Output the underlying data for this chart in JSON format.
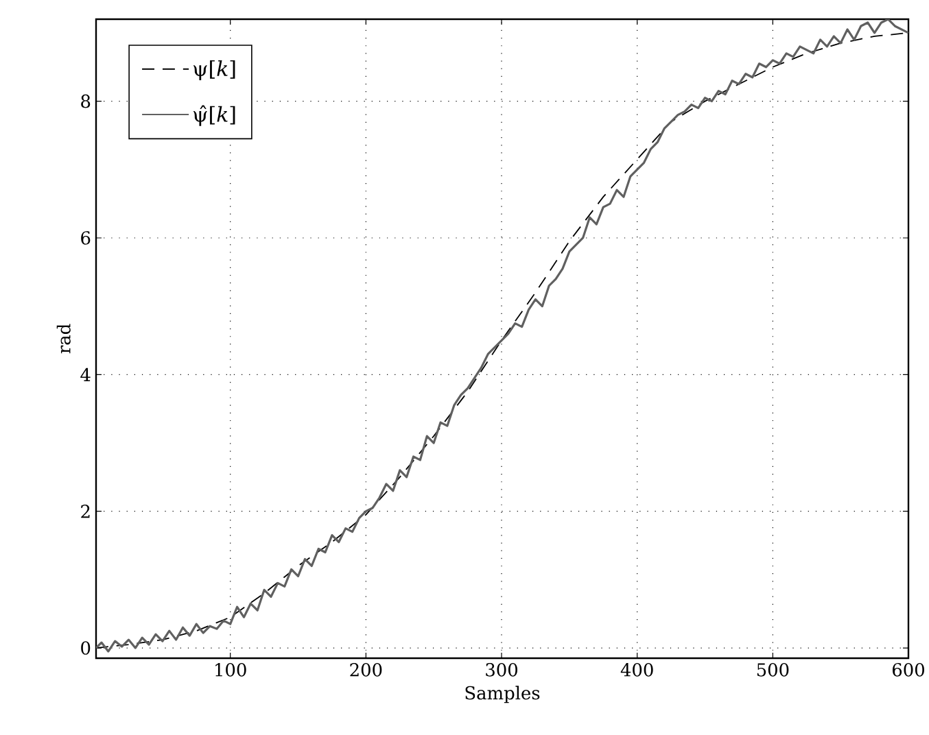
{
  "chart_data": {
    "type": "line",
    "xlabel": "Samples",
    "ylabel": "rad",
    "xlim": [
      1,
      600
    ],
    "ylim": [
      -0.15,
      9.2
    ],
    "xticks": [
      100,
      200,
      300,
      400,
      500,
      600
    ],
    "yticks": [
      0,
      2,
      4,
      6,
      8
    ],
    "grid": true,
    "legend": "top left",
    "marker": "none",
    "series": [
      {
        "name": "ψ[*k*]",
        "color": "#000000",
        "line_style": "dashed",
        "x": [
          1,
          25,
          50,
          75,
          100,
          125,
          150,
          175,
          200,
          225,
          250,
          275,
          300,
          325,
          350,
          375,
          400,
          425,
          450,
          475,
          500,
          525,
          550,
          575,
          600
        ],
        "values": [
          0,
          0.05,
          0.12,
          0.25,
          0.45,
          0.8,
          1.2,
          1.55,
          1.95,
          2.5,
          3.1,
          3.75,
          4.5,
          5.2,
          5.95,
          6.6,
          7.15,
          7.7,
          8.0,
          8.25,
          8.5,
          8.7,
          8.85,
          8.95,
          9.0
        ]
      },
      {
        "name": "ψ̂[*k*]",
        "color": "#606060",
        "line_style": "solid",
        "x": [
          1,
          5,
          10,
          15,
          20,
          25,
          30,
          35,
          40,
          45,
          50,
          55,
          60,
          65,
          70,
          75,
          80,
          85,
          90,
          95,
          100,
          105,
          110,
          115,
          120,
          125,
          130,
          135,
          140,
          145,
          150,
          155,
          160,
          165,
          170,
          175,
          180,
          185,
          190,
          195,
          200,
          205,
          210,
          215,
          220,
          225,
          230,
          235,
          240,
          245,
          250,
          255,
          260,
          265,
          270,
          275,
          280,
          285,
          290,
          295,
          300,
          305,
          310,
          315,
          320,
          325,
          330,
          335,
          340,
          345,
          350,
          355,
          360,
          365,
          370,
          375,
          380,
          385,
          390,
          395,
          400,
          405,
          410,
          415,
          420,
          425,
          430,
          435,
          440,
          445,
          450,
          455,
          460,
          465,
          470,
          475,
          480,
          485,
          490,
          495,
          500,
          505,
          510,
          515,
          520,
          525,
          530,
          535,
          540,
          545,
          550,
          555,
          560,
          565,
          570,
          575,
          580,
          585,
          590,
          595,
          600
        ],
        "values": [
          0.0,
          0.08,
          -0.05,
          0.1,
          0.02,
          0.12,
          0.0,
          0.15,
          0.05,
          0.2,
          0.1,
          0.25,
          0.12,
          0.3,
          0.18,
          0.35,
          0.22,
          0.32,
          0.28,
          0.4,
          0.35,
          0.6,
          0.45,
          0.65,
          0.55,
          0.85,
          0.75,
          0.95,
          0.9,
          1.15,
          1.05,
          1.3,
          1.2,
          1.45,
          1.4,
          1.65,
          1.55,
          1.75,
          1.7,
          1.9,
          2.0,
          2.05,
          2.2,
          2.4,
          2.3,
          2.6,
          2.5,
          2.8,
          2.75,
          3.1,
          3.0,
          3.3,
          3.25,
          3.55,
          3.7,
          3.8,
          3.95,
          4.1,
          4.3,
          4.4,
          4.5,
          4.6,
          4.75,
          4.7,
          4.95,
          5.1,
          5.0,
          5.3,
          5.4,
          5.55,
          5.8,
          5.9,
          6.0,
          6.3,
          6.2,
          6.45,
          6.5,
          6.7,
          6.6,
          6.9,
          7.0,
          7.1,
          7.3,
          7.4,
          7.6,
          7.7,
          7.8,
          7.85,
          7.95,
          7.9,
          8.05,
          8.0,
          8.15,
          8.1,
          8.3,
          8.25,
          8.4,
          8.35,
          8.55,
          8.5,
          8.6,
          8.55,
          8.7,
          8.65,
          8.8,
          8.75,
          8.7,
          8.9,
          8.8,
          8.95,
          8.85,
          9.05,
          8.9,
          9.1,
          9.15,
          9.0,
          9.15,
          9.2,
          9.1,
          9.05,
          9.0
        ]
      }
    ]
  }
}
